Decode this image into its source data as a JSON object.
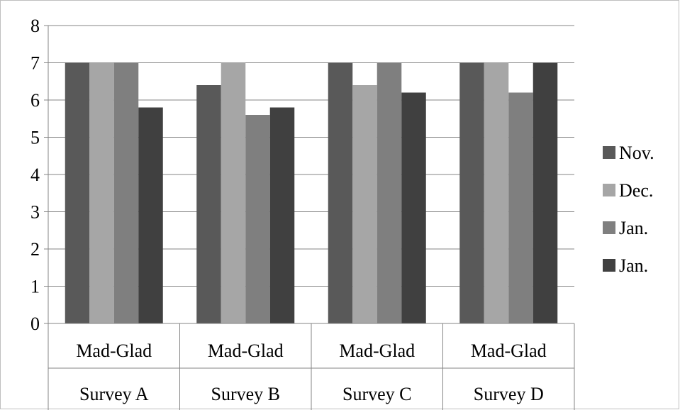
{
  "chart_data": {
    "type": "bar",
    "categories": [
      [
        "Mad-Glad",
        "Survey A"
      ],
      [
        "Mad-Glad",
        "Survey B"
      ],
      [
        "Mad-Glad",
        "Survey C"
      ],
      [
        "Mad-Glad",
        "Survey D"
      ]
    ],
    "series": [
      {
        "name": "Nov.",
        "values": [
          7,
          6.4,
          7,
          7
        ],
        "color": "#595959"
      },
      {
        "name": "Dec.",
        "values": [
          7,
          7,
          6.4,
          7
        ],
        "color": "#a6a6a6"
      },
      {
        "name": "Jan.",
        "values": [
          7,
          5.6,
          7,
          6.2
        ],
        "color": "#7f7f7f"
      },
      {
        "name": "Jan.",
        "values": [
          5.8,
          5.8,
          6.2,
          7
        ],
        "color": "#404040"
      }
    ],
    "ylim": [
      0,
      8
    ],
    "yticks": [
      0,
      1,
      2,
      3,
      4,
      5,
      6,
      7,
      8
    ],
    "grid": true,
    "legend": "right"
  }
}
